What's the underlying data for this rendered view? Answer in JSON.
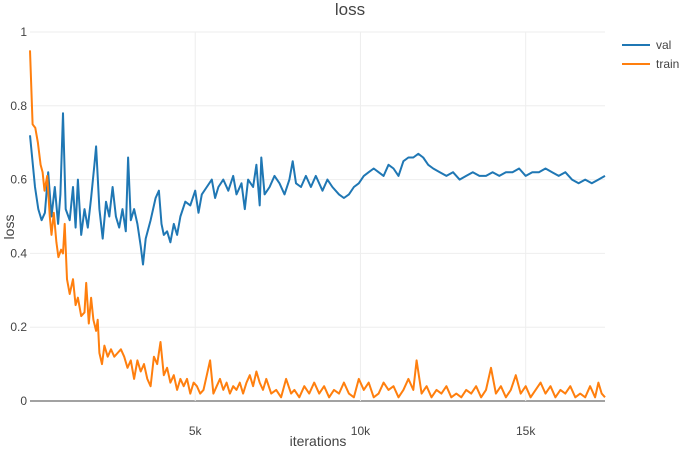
{
  "chart_data": {
    "type": "line",
    "title": "loss",
    "xlabel": "iterations",
    "ylabel": "loss",
    "xlim": [
      0,
      17400
    ],
    "ylim": [
      0,
      1
    ],
    "grid": true,
    "legend_position": "top-right",
    "x_ticks": [
      5000,
      10000,
      15000
    ],
    "x_tick_labels": [
      "5k",
      "10k",
      "15k"
    ],
    "y_ticks": [
      0,
      0.2,
      0.4,
      0.6,
      0.8,
      1
    ],
    "y_tick_labels": [
      "0",
      "0.2",
      "0.4",
      "0.6",
      "0.8",
      "1"
    ],
    "series": [
      {
        "name": "val",
        "color": "#1f77b4",
        "points": [
          [
            0,
            0.72
          ],
          [
            150,
            0.58
          ],
          [
            250,
            0.52
          ],
          [
            350,
            0.49
          ],
          [
            450,
            0.51
          ],
          [
            550,
            0.62
          ],
          [
            650,
            0.5
          ],
          [
            750,
            0.58
          ],
          [
            850,
            0.48
          ],
          [
            920,
            0.56
          ],
          [
            1000,
            0.78
          ],
          [
            1080,
            0.52
          ],
          [
            1200,
            0.49
          ],
          [
            1300,
            0.58
          ],
          [
            1380,
            0.47
          ],
          [
            1450,
            0.6
          ],
          [
            1550,
            0.45
          ],
          [
            1650,
            0.52
          ],
          [
            1750,
            0.47
          ],
          [
            1850,
            0.55
          ],
          [
            1950,
            0.64
          ],
          [
            2000,
            0.69
          ],
          [
            2100,
            0.52
          ],
          [
            2200,
            0.44
          ],
          [
            2300,
            0.54
          ],
          [
            2400,
            0.5
          ],
          [
            2500,
            0.58
          ],
          [
            2600,
            0.5
          ],
          [
            2700,
            0.47
          ],
          [
            2800,
            0.52
          ],
          [
            2900,
            0.46
          ],
          [
            2970,
            0.66
          ],
          [
            3050,
            0.49
          ],
          [
            3150,
            0.52
          ],
          [
            3250,
            0.48
          ],
          [
            3350,
            0.42
          ],
          [
            3420,
            0.37
          ],
          [
            3500,
            0.44
          ],
          [
            3650,
            0.49
          ],
          [
            3800,
            0.55
          ],
          [
            3900,
            0.57
          ],
          [
            3980,
            0.48
          ],
          [
            4050,
            0.45
          ],
          [
            4150,
            0.46
          ],
          [
            4250,
            0.43
          ],
          [
            4350,
            0.48
          ],
          [
            4450,
            0.45
          ],
          [
            4550,
            0.5
          ],
          [
            4700,
            0.54
          ],
          [
            4850,
            0.53
          ],
          [
            5000,
            0.57
          ],
          [
            5100,
            0.51
          ],
          [
            5200,
            0.56
          ],
          [
            5350,
            0.58
          ],
          [
            5500,
            0.6
          ],
          [
            5600,
            0.55
          ],
          [
            5700,
            0.58
          ],
          [
            5850,
            0.6
          ],
          [
            6000,
            0.57
          ],
          [
            6150,
            0.61
          ],
          [
            6250,
            0.56
          ],
          [
            6400,
            0.59
          ],
          [
            6500,
            0.52
          ],
          [
            6600,
            0.6
          ],
          [
            6750,
            0.58
          ],
          [
            6850,
            0.64
          ],
          [
            6950,
            0.53
          ],
          [
            7000,
            0.66
          ],
          [
            7100,
            0.56
          ],
          [
            7250,
            0.58
          ],
          [
            7400,
            0.61
          ],
          [
            7550,
            0.59
          ],
          [
            7700,
            0.56
          ],
          [
            7850,
            0.6
          ],
          [
            7950,
            0.65
          ],
          [
            8050,
            0.59
          ],
          [
            8200,
            0.58
          ],
          [
            8350,
            0.61
          ],
          [
            8500,
            0.58
          ],
          [
            8650,
            0.61
          ],
          [
            8850,
            0.57
          ],
          [
            9000,
            0.6
          ],
          [
            9150,
            0.58
          ],
          [
            9350,
            0.56
          ],
          [
            9500,
            0.55
          ],
          [
            9650,
            0.56
          ],
          [
            9800,
            0.58
          ],
          [
            9950,
            0.59
          ],
          [
            10100,
            0.61
          ],
          [
            10250,
            0.62
          ],
          [
            10400,
            0.63
          ],
          [
            10550,
            0.62
          ],
          [
            10700,
            0.61
          ],
          [
            10850,
            0.64
          ],
          [
            11000,
            0.63
          ],
          [
            11150,
            0.61
          ],
          [
            11300,
            0.65
          ],
          [
            11450,
            0.66
          ],
          [
            11600,
            0.66
          ],
          [
            11750,
            0.67
          ],
          [
            11900,
            0.66
          ],
          [
            12050,
            0.64
          ],
          [
            12200,
            0.63
          ],
          [
            12400,
            0.62
          ],
          [
            12600,
            0.61
          ],
          [
            12800,
            0.62
          ],
          [
            13000,
            0.6
          ],
          [
            13200,
            0.61
          ],
          [
            13400,
            0.62
          ],
          [
            13600,
            0.61
          ],
          [
            13800,
            0.61
          ],
          [
            14000,
            0.62
          ],
          [
            14200,
            0.61
          ],
          [
            14400,
            0.62
          ],
          [
            14600,
            0.62
          ],
          [
            14800,
            0.63
          ],
          [
            15000,
            0.61
          ],
          [
            15200,
            0.62
          ],
          [
            15400,
            0.62
          ],
          [
            15600,
            0.63
          ],
          [
            15800,
            0.62
          ],
          [
            16000,
            0.61
          ],
          [
            16200,
            0.62
          ],
          [
            16400,
            0.6
          ],
          [
            16600,
            0.59
          ],
          [
            16800,
            0.6
          ],
          [
            17000,
            0.59
          ],
          [
            17200,
            0.6
          ],
          [
            17400,
            0.61
          ]
        ]
      },
      {
        "name": "train",
        "color": "#ff7f0e",
        "points": [
          [
            0,
            0.95
          ],
          [
            80,
            0.75
          ],
          [
            160,
            0.74
          ],
          [
            240,
            0.7
          ],
          [
            320,
            0.64
          ],
          [
            380,
            0.62
          ],
          [
            440,
            0.57
          ],
          [
            520,
            0.61
          ],
          [
            600,
            0.5
          ],
          [
            650,
            0.45
          ],
          [
            720,
            0.51
          ],
          [
            800,
            0.43
          ],
          [
            860,
            0.39
          ],
          [
            940,
            0.41
          ],
          [
            1000,
            0.4
          ],
          [
            1050,
            0.48
          ],
          [
            1120,
            0.33
          ],
          [
            1200,
            0.29
          ],
          [
            1300,
            0.33
          ],
          [
            1380,
            0.26
          ],
          [
            1450,
            0.28
          ],
          [
            1550,
            0.23
          ],
          [
            1650,
            0.24
          ],
          [
            1700,
            0.32
          ],
          [
            1780,
            0.21
          ],
          [
            1850,
            0.28
          ],
          [
            1920,
            0.22
          ],
          [
            2000,
            0.19
          ],
          [
            2050,
            0.22
          ],
          [
            2100,
            0.13
          ],
          [
            2180,
            0.1
          ],
          [
            2250,
            0.15
          ],
          [
            2350,
            0.12
          ],
          [
            2450,
            0.14
          ],
          [
            2550,
            0.12
          ],
          [
            2650,
            0.13
          ],
          [
            2750,
            0.14
          ],
          [
            2850,
            0.12
          ],
          [
            2950,
            0.09
          ],
          [
            3050,
            0.11
          ],
          [
            3150,
            0.06
          ],
          [
            3250,
            0.11
          ],
          [
            3350,
            0.08
          ],
          [
            3450,
            0.1
          ],
          [
            3550,
            0.06
          ],
          [
            3650,
            0.04
          ],
          [
            3750,
            0.12
          ],
          [
            3850,
            0.1
          ],
          [
            3950,
            0.16
          ],
          [
            4050,
            0.07
          ],
          [
            4150,
            0.09
          ],
          [
            4250,
            0.05
          ],
          [
            4350,
            0.07
          ],
          [
            4450,
            0.03
          ],
          [
            4550,
            0.06
          ],
          [
            4650,
            0.04
          ],
          [
            4750,
            0.06
          ],
          [
            4850,
            0.02
          ],
          [
            4950,
            0.05
          ],
          [
            5050,
            0.04
          ],
          [
            5150,
            0.02
          ],
          [
            5250,
            0.03
          ],
          [
            5350,
            0.07
          ],
          [
            5450,
            0.11
          ],
          [
            5550,
            0.02
          ],
          [
            5650,
            0.04
          ],
          [
            5750,
            0.06
          ],
          [
            5850,
            0.03
          ],
          [
            5950,
            0.05
          ],
          [
            6050,
            0.02
          ],
          [
            6150,
            0.04
          ],
          [
            6250,
            0.03
          ],
          [
            6350,
            0.05
          ],
          [
            6450,
            0.02
          ],
          [
            6550,
            0.05
          ],
          [
            6650,
            0.07
          ],
          [
            6750,
            0.04
          ],
          [
            6850,
            0.08
          ],
          [
            6950,
            0.05
          ],
          [
            7050,
            0.03
          ],
          [
            7150,
            0.06
          ],
          [
            7300,
            0.02
          ],
          [
            7450,
            0.03
          ],
          [
            7600,
            0.01
          ],
          [
            7750,
            0.06
          ],
          [
            7900,
            0.02
          ],
          [
            8000,
            0.03
          ],
          [
            8150,
            0.01
          ],
          [
            8300,
            0.04
          ],
          [
            8450,
            0.02
          ],
          [
            8600,
            0.05
          ],
          [
            8750,
            0.02
          ],
          [
            8900,
            0.04
          ],
          [
            9050,
            0.01
          ],
          [
            9200,
            0.03
          ],
          [
            9350,
            0.02
          ],
          [
            9500,
            0.05
          ],
          [
            9650,
            0.02
          ],
          [
            9800,
            0.01
          ],
          [
            9950,
            0.06
          ],
          [
            10100,
            0.03
          ],
          [
            10250,
            0.05
          ],
          [
            10400,
            0.01
          ],
          [
            10550,
            0.02
          ],
          [
            10700,
            0.05
          ],
          [
            10850,
            0.03
          ],
          [
            11000,
            0.04
          ],
          [
            11150,
            0.01
          ],
          [
            11300,
            0.03
          ],
          [
            11450,
            0.06
          ],
          [
            11600,
            0.03
          ],
          [
            11700,
            0.11
          ],
          [
            11850,
            0.02
          ],
          [
            12000,
            0.04
          ],
          [
            12150,
            0.01
          ],
          [
            12300,
            0.03
          ],
          [
            12450,
            0.02
          ],
          [
            12600,
            0.04
          ],
          [
            12750,
            0.01
          ],
          [
            12900,
            0.02
          ],
          [
            13050,
            0.01
          ],
          [
            13200,
            0.03
          ],
          [
            13350,
            0.02
          ],
          [
            13500,
            0.04
          ],
          [
            13650,
            0.01
          ],
          [
            13800,
            0.03
          ],
          [
            13950,
            0.09
          ],
          [
            14100,
            0.02
          ],
          [
            14250,
            0.04
          ],
          [
            14400,
            0.01
          ],
          [
            14550,
            0.03
          ],
          [
            14700,
            0.07
          ],
          [
            14850,
            0.02
          ],
          [
            15000,
            0.04
          ],
          [
            15150,
            0.01
          ],
          [
            15300,
            0.03
          ],
          [
            15450,
            0.05
          ],
          [
            15600,
            0.02
          ],
          [
            15750,
            0.04
          ],
          [
            15900,
            0.01
          ],
          [
            16050,
            0.03
          ],
          [
            16200,
            0.02
          ],
          [
            16350,
            0.04
          ],
          [
            16500,
            0.01
          ],
          [
            16650,
            0.02
          ],
          [
            16800,
            0.01
          ],
          [
            16950,
            0.04
          ],
          [
            17100,
            0.01
          ],
          [
            17200,
            0.05
          ],
          [
            17300,
            0.02
          ],
          [
            17400,
            0.01
          ]
        ]
      }
    ]
  }
}
